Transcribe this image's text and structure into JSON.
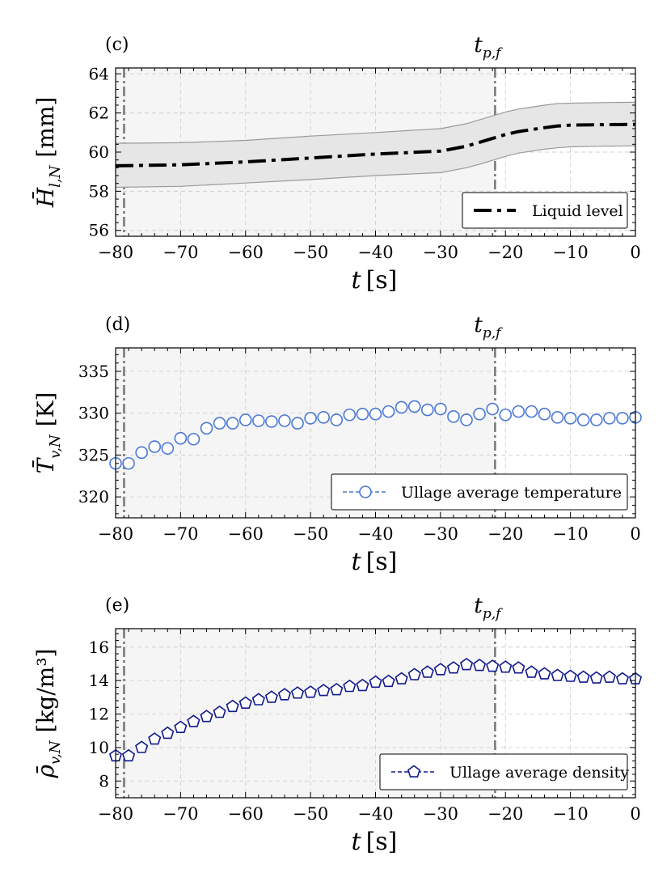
{
  "marker_label": "t",
  "marker_sub": "p,f",
  "xlabel_var": "t",
  "xlabel_unit": "[s]",
  "chart_data": [
    {
      "id": "c",
      "panel_label": "(c)",
      "type": "line",
      "title": "",
      "ylabel_sym": "H̄",
      "ylabel_sub": "l,N",
      "ylabel_unit": "[mm]",
      "xlim": [
        -80,
        0
      ],
      "ylim": [
        55.7,
        64.3
      ],
      "xticks": [
        -80,
        -70,
        -60,
        -50,
        -40,
        -30,
        -20,
        -10,
        0
      ],
      "xtick_labels": [
        "−80",
        "−70",
        "−60",
        "−50",
        "−40",
        "−30",
        "−20",
        "−10",
        "0"
      ],
      "yticks": [
        56,
        58,
        60,
        62,
        64
      ],
      "ytick_labels": [
        "56",
        "58",
        "60",
        "62",
        "64"
      ],
      "grid": true,
      "vlines": [
        -78.7,
        -21.6
      ],
      "shaded_region": [
        -80,
        -21.6
      ],
      "marker_at": -21.6,
      "legend_position": "lower-right",
      "series": [
        {
          "name": "Liquid level",
          "style": "dashdot",
          "color": "#000000",
          "x": [
            -80,
            -70,
            -60,
            -50,
            -40,
            -30,
            -26,
            -24,
            -22,
            -20,
            -18,
            -16,
            -14,
            -12,
            -10,
            -5,
            0
          ],
          "y": [
            59.3,
            59.35,
            59.5,
            59.7,
            59.9,
            60.05,
            60.3,
            60.5,
            60.7,
            60.9,
            61.05,
            61.15,
            61.25,
            61.33,
            61.38,
            61.4,
            61.42
          ],
          "band_upper": [
            60.45,
            60.48,
            60.6,
            60.82,
            61.0,
            61.2,
            61.45,
            61.65,
            61.85,
            62.05,
            62.2,
            62.3,
            62.4,
            62.48,
            62.5,
            62.53,
            62.55
          ],
          "band_lower": [
            58.2,
            58.25,
            58.42,
            58.6,
            58.8,
            58.95,
            59.2,
            59.38,
            59.58,
            59.78,
            59.95,
            60.05,
            60.15,
            60.22,
            60.27,
            60.3,
            60.32
          ]
        }
      ]
    },
    {
      "id": "d",
      "panel_label": "(d)",
      "type": "scatter",
      "title": "",
      "ylabel_sym": "T̄",
      "ylabel_sub": "v,N",
      "ylabel_unit": "[K]",
      "xlim": [
        -80,
        0
      ],
      "ylim": [
        317.5,
        337.8
      ],
      "xticks": [
        -80,
        -70,
        -60,
        -50,
        -40,
        -30,
        -20,
        -10,
        0
      ],
      "xtick_labels": [
        "−80",
        "−70",
        "−60",
        "−50",
        "−40",
        "−30",
        "−20",
        "−10",
        "0"
      ],
      "yticks": [
        320,
        325,
        330,
        335
      ],
      "ytick_labels": [
        "320",
        "325",
        "330",
        "335"
      ],
      "grid": true,
      "vlines": [
        -78.7,
        -21.6
      ],
      "shaded_region": [
        -80,
        -21.6
      ],
      "marker_at": -21.6,
      "legend_position": "lower-right",
      "series": [
        {
          "name": "Ullage average temperature",
          "marker": "circle",
          "color": "#4a78d6",
          "x": [
            -80,
            -78,
            -76,
            -74,
            -72,
            -70,
            -68,
            -66,
            -64,
            -62,
            -60,
            -58,
            -56,
            -54,
            -52,
            -50,
            -48,
            -46,
            -44,
            -42,
            -40,
            -38,
            -36,
            -34,
            -32,
            -30,
            -28,
            -26,
            -24,
            -22,
            -20,
            -18,
            -16,
            -14,
            -12,
            -10,
            -8,
            -6,
            -4,
            -2,
            0
          ],
          "y": [
            324.0,
            324.0,
            325.3,
            326.0,
            325.8,
            327.0,
            326.9,
            328.2,
            328.8,
            328.8,
            329.2,
            329.1,
            329.0,
            329.1,
            328.8,
            329.4,
            329.5,
            329.2,
            329.8,
            329.9,
            329.9,
            330.2,
            330.7,
            330.8,
            330.4,
            330.5,
            329.6,
            329.2,
            329.9,
            330.5,
            329.8,
            330.2,
            330.2,
            329.9,
            329.5,
            329.4,
            329.2,
            329.2,
            329.4,
            329.4,
            329.5
          ]
        }
      ]
    },
    {
      "id": "e",
      "panel_label": "(e)",
      "type": "scatter",
      "title": "",
      "ylabel_sym": "ρ̄",
      "ylabel_sub": "v,N",
      "ylabel_unit": "[kg/m³]",
      "xlim": [
        -80,
        0
      ],
      "ylim": [
        7.0,
        17.1
      ],
      "xticks": [
        -80,
        -70,
        -60,
        -50,
        -40,
        -30,
        -20,
        -10,
        0
      ],
      "xtick_labels": [
        "−80",
        "−70",
        "−60",
        "−50",
        "−40",
        "−30",
        "−20",
        "−10",
        "0"
      ],
      "yticks": [
        8,
        10,
        12,
        14,
        16
      ],
      "ytick_labels": [
        "8",
        "10",
        "12",
        "14",
        "16"
      ],
      "grid": true,
      "vlines": [
        -78.7,
        -21.6
      ],
      "shaded_region": [
        -80,
        -21.6
      ],
      "marker_at": -21.6,
      "legend_position": "lower-right",
      "series": [
        {
          "name": "Ullage average density",
          "marker": "pentagon",
          "color": "#10188c",
          "x": [
            -80,
            -78,
            -76,
            -74,
            -72,
            -70,
            -68,
            -66,
            -64,
            -62,
            -60,
            -58,
            -56,
            -54,
            -52,
            -50,
            -48,
            -46,
            -44,
            -42,
            -40,
            -38,
            -36,
            -34,
            -32,
            -30,
            -28,
            -26,
            -24,
            -22,
            -20,
            -18,
            -16,
            -14,
            -12,
            -10,
            -8,
            -6,
            -4,
            -2,
            0
          ],
          "y": [
            9.5,
            9.5,
            10.0,
            10.5,
            10.85,
            11.2,
            11.55,
            11.85,
            12.1,
            12.45,
            12.65,
            12.85,
            13.0,
            13.15,
            13.25,
            13.3,
            13.4,
            13.45,
            13.65,
            13.7,
            13.9,
            13.95,
            14.1,
            14.35,
            14.5,
            14.65,
            14.75,
            14.95,
            14.9,
            14.85,
            14.8,
            14.75,
            14.5,
            14.4,
            14.3,
            14.25,
            14.2,
            14.15,
            14.2,
            14.1,
            14.1
          ]
        }
      ]
    }
  ]
}
